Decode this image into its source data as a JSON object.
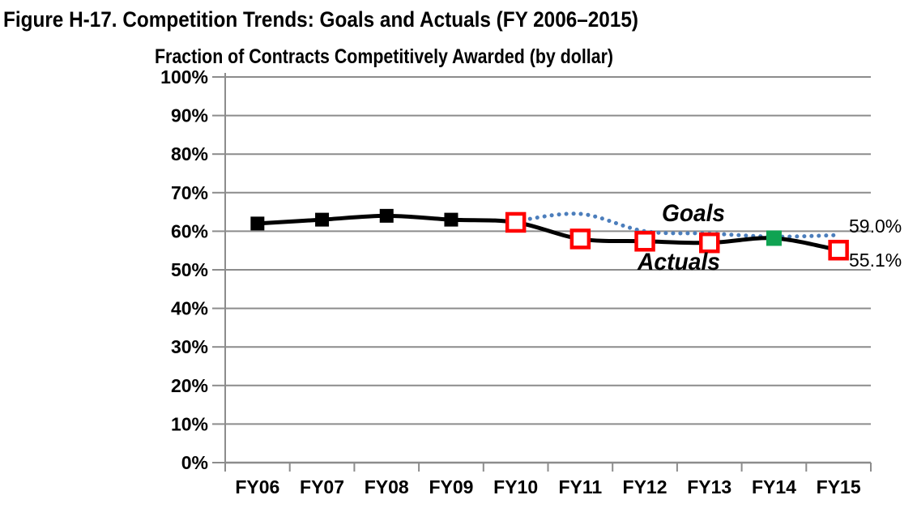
{
  "header": {
    "title": "Figure H-17. Competition Trends: Goals and Actuals (FY 2006–2015)"
  },
  "chart_data": {
    "type": "line",
    "title": "Fraction of Contracts Competitively Awarded (by dollar)",
    "categories": [
      "FY06",
      "FY07",
      "FY08",
      "FY09",
      "FY10",
      "FY11",
      "FY12",
      "FY13",
      "FY14",
      "FY15"
    ],
    "y_axis": {
      "min": 0,
      "max": 100,
      "step": 10,
      "tick_labels": [
        "0%",
        "10%",
        "20%",
        "30%",
        "40%",
        "50%",
        "60%",
        "70%",
        "80%",
        "90%",
        "100%"
      ],
      "grid": true
    },
    "series": [
      {
        "name": "Goals",
        "smooth": true,
        "line_style": "dotted",
        "line_color": "#4C7EBC",
        "start_index": 4,
        "values": [
          62.6,
          64.5,
          60.0,
          59.4,
          58.6,
          59.0
        ],
        "markers": [],
        "inline_label": {
          "text": "Goals",
          "color": "#2F5496"
        }
      },
      {
        "name": "Actuals",
        "smooth": true,
        "line_style": "solid",
        "line_color": "#000000",
        "start_index": 0,
        "values": [
          62.0,
          63.0,
          64.0,
          63.0,
          62.3,
          58.0,
          57.4,
          57.0,
          58.2,
          55.1
        ],
        "markers": [
          "filled-black-square",
          "filled-black-square",
          "filled-black-square",
          "filled-black-square",
          "open-red-square",
          "open-red-square",
          "open-red-square",
          "open-red-square",
          "filled-green-square",
          "open-red-square"
        ],
        "inline_label": {
          "text": "Actuals",
          "color": "#000000"
        }
      }
    ],
    "end_annotations": [
      {
        "series": "Goals",
        "text": "59.0%"
      },
      {
        "series": "Actuals",
        "text": "55.1%"
      }
    ],
    "legend_position": "inline-labels",
    "colors": {
      "red_marker": "#FF0000",
      "green_marker": "#10A352",
      "black_marker": "#000000",
      "marker_fill": "#FFFFFF",
      "gridline": "#8C8C8C",
      "axis": "#8C8C8C"
    }
  }
}
